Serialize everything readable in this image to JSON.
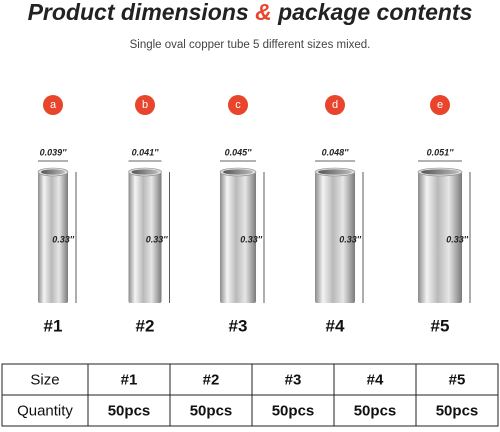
{
  "header": {
    "title": [
      "Product dimensions",
      "&",
      "package contents"
    ],
    "subtitle": "Single oval copper tube 5 different sizes mixed."
  },
  "items": [
    {
      "letter": "a",
      "width": "0.039''",
      "height": "0.33''",
      "label": "#1"
    },
    {
      "letter": "b",
      "width": "0.041''",
      "height": "0.33''",
      "label": "#2"
    },
    {
      "letter": "c",
      "width": "0.045''",
      "height": "0.33''",
      "label": "#3"
    },
    {
      "letter": "d",
      "width": "0.048''",
      "height": "0.33''",
      "label": "#4"
    },
    {
      "letter": "e",
      "width": "0.051''",
      "height": "0.33''",
      "label": "#5"
    }
  ],
  "table": {
    "rows": [
      [
        "Size",
        "#1",
        "#2",
        "#3",
        "#4",
        "#5"
      ],
      [
        "Quantity",
        "50pcs",
        "50pcs",
        "50pcs",
        "50pcs",
        "50pcs"
      ]
    ]
  }
}
